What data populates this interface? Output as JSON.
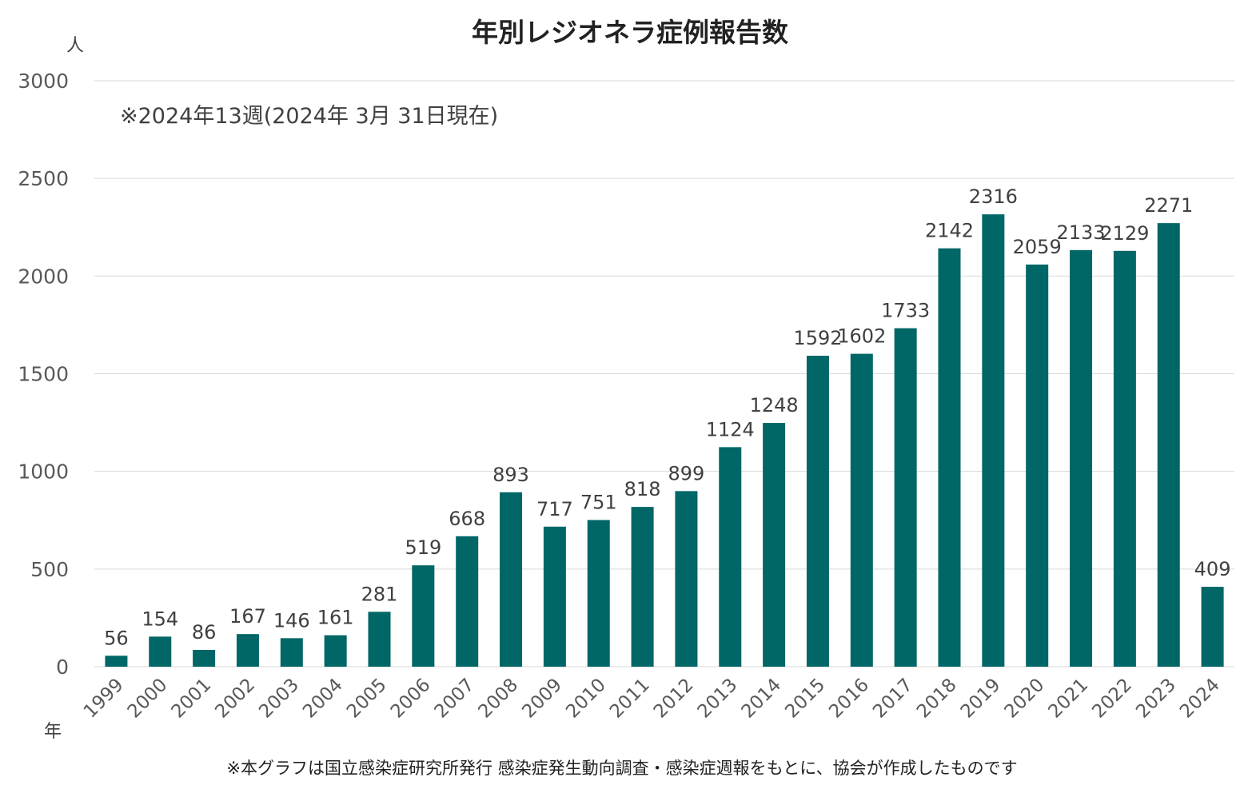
{
  "chart_data": {
    "type": "bar",
    "title": "年別レジオネラ症例報告数",
    "y_unit": "人",
    "x_unit": "年",
    "annotation": "※2024年13週(2024年 3月 31日現在)",
    "source_note": "※本グラフは国立感染症研究所発行 感染症発生動向調査・感染症週報をもとに、協会が作成したものです",
    "ylim": [
      0,
      3000
    ],
    "yticks": [
      0,
      500,
      1000,
      1500,
      2000,
      2500,
      3000
    ],
    "grid": true,
    "bar_color": "#006666",
    "categories": [
      "1999",
      "2000",
      "2001",
      "2002",
      "2003",
      "2004",
      "2005",
      "2006",
      "2007",
      "2008",
      "2009",
      "2010",
      "2011",
      "2012",
      "2013",
      "2014",
      "2015",
      "2016",
      "2017",
      "2018",
      "2019",
      "2020",
      "2021",
      "2022",
      "2023",
      "2024"
    ],
    "values": [
      56,
      154,
      86,
      167,
      146,
      161,
      281,
      519,
      668,
      893,
      717,
      751,
      818,
      899,
      1124,
      1248,
      1592,
      1602,
      1733,
      2142,
      2316,
      2059,
      2133,
      2129,
      2271,
      409
    ]
  }
}
